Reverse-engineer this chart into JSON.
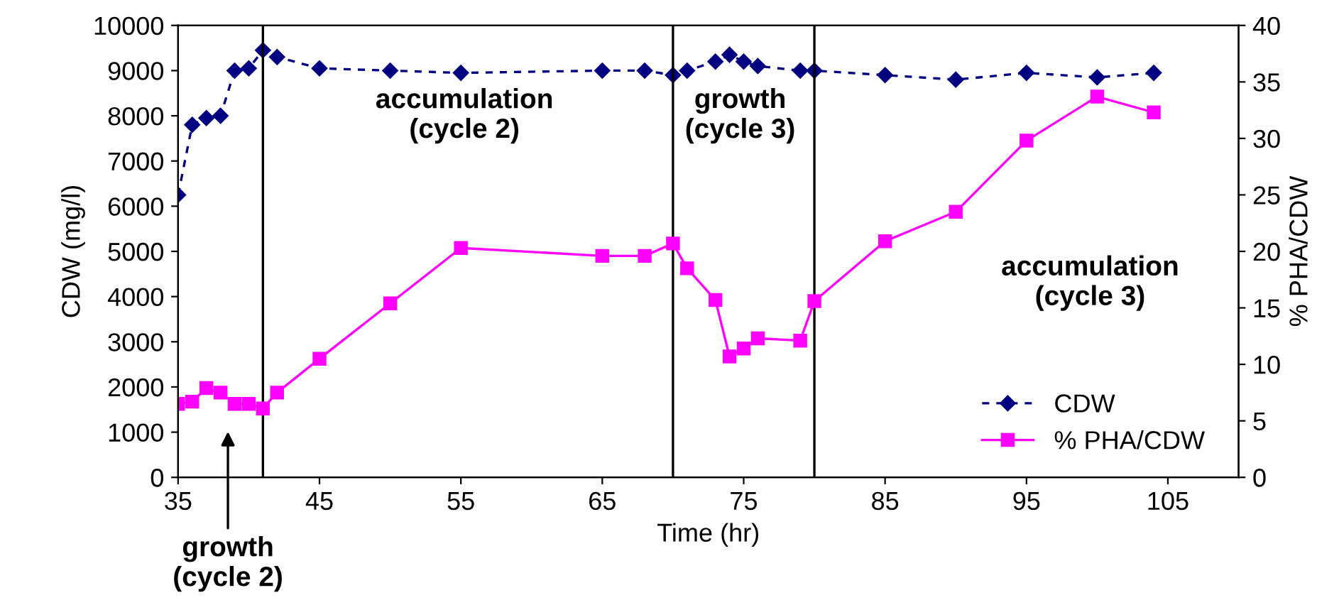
{
  "chart_data": {
    "type": "line",
    "xlabel": "Time (hr)",
    "ylabel": "CDW (mg/l)",
    "y2label": "% PHA/CDW",
    "xlim": [
      35,
      110
    ],
    "xticks": [
      35,
      45,
      55,
      65,
      75,
      85,
      95,
      105
    ],
    "ylim": [
      0,
      10000
    ],
    "yticks": [
      0,
      1000,
      2000,
      3000,
      4000,
      5000,
      6000,
      7000,
      8000,
      9000,
      10000
    ],
    "y2lim": [
      0,
      40
    ],
    "y2ticks": [
      0,
      5,
      10,
      15,
      20,
      25,
      30,
      35,
      40
    ],
    "grid": false,
    "legend": "bottom right",
    "series": [
      {
        "name": "CDW",
        "color": "#000080",
        "marker": "diamond",
        "line_style": "dashed",
        "x": [
          35,
          36,
          37,
          38,
          39,
          40,
          41,
          42,
          45,
          50,
          55,
          65,
          68,
          70,
          71,
          73,
          74,
          75,
          76,
          79,
          80,
          85,
          90,
          95,
          100,
          104
        ],
        "values": [
          6250,
          7800,
          7950,
          8000,
          9000,
          9050,
          9450,
          9300,
          9050,
          9000,
          8950,
          9000,
          9000,
          8900,
          9000,
          9200,
          9350,
          9200,
          9100,
          9000,
          9000,
          8900,
          8800,
          8950,
          8850,
          8950
        ]
      },
      {
        "name": "% PHA/CDW",
        "color": "#ff00ff",
        "marker": "square",
        "line_style": "solid",
        "axis": "y2",
        "x": [
          35,
          36,
          37,
          38,
          39,
          40,
          41,
          42,
          45,
          50,
          55,
          65,
          68,
          70,
          71,
          73,
          74,
          75,
          76,
          79,
          80,
          85,
          90,
          95,
          100,
          104
        ],
        "values": [
          6.5,
          6.7,
          7.9,
          7.5,
          6.5,
          6.5,
          6.1,
          7.5,
          10.5,
          15.4,
          20.3,
          19.6,
          19.6,
          20.7,
          18.5,
          15.7,
          10.7,
          11.4,
          12.3,
          12.1,
          15.6,
          20.9,
          23.5,
          29.8,
          33.7,
          32.3
        ]
      }
    ],
    "ref_lines": [
      {
        "axis": "x",
        "value": 41,
        "color": "#000000"
      },
      {
        "axis": "x",
        "value": 70,
        "color": "#000000"
      },
      {
        "axis": "x",
        "value": 80,
        "color": "#000000"
      }
    ],
    "annotations": [
      "accumulation\n(cycle 2)",
      "growth\n(cycle 3)",
      "accumulation\n(cycle 3)",
      "growth\n(cycle 2)"
    ]
  }
}
